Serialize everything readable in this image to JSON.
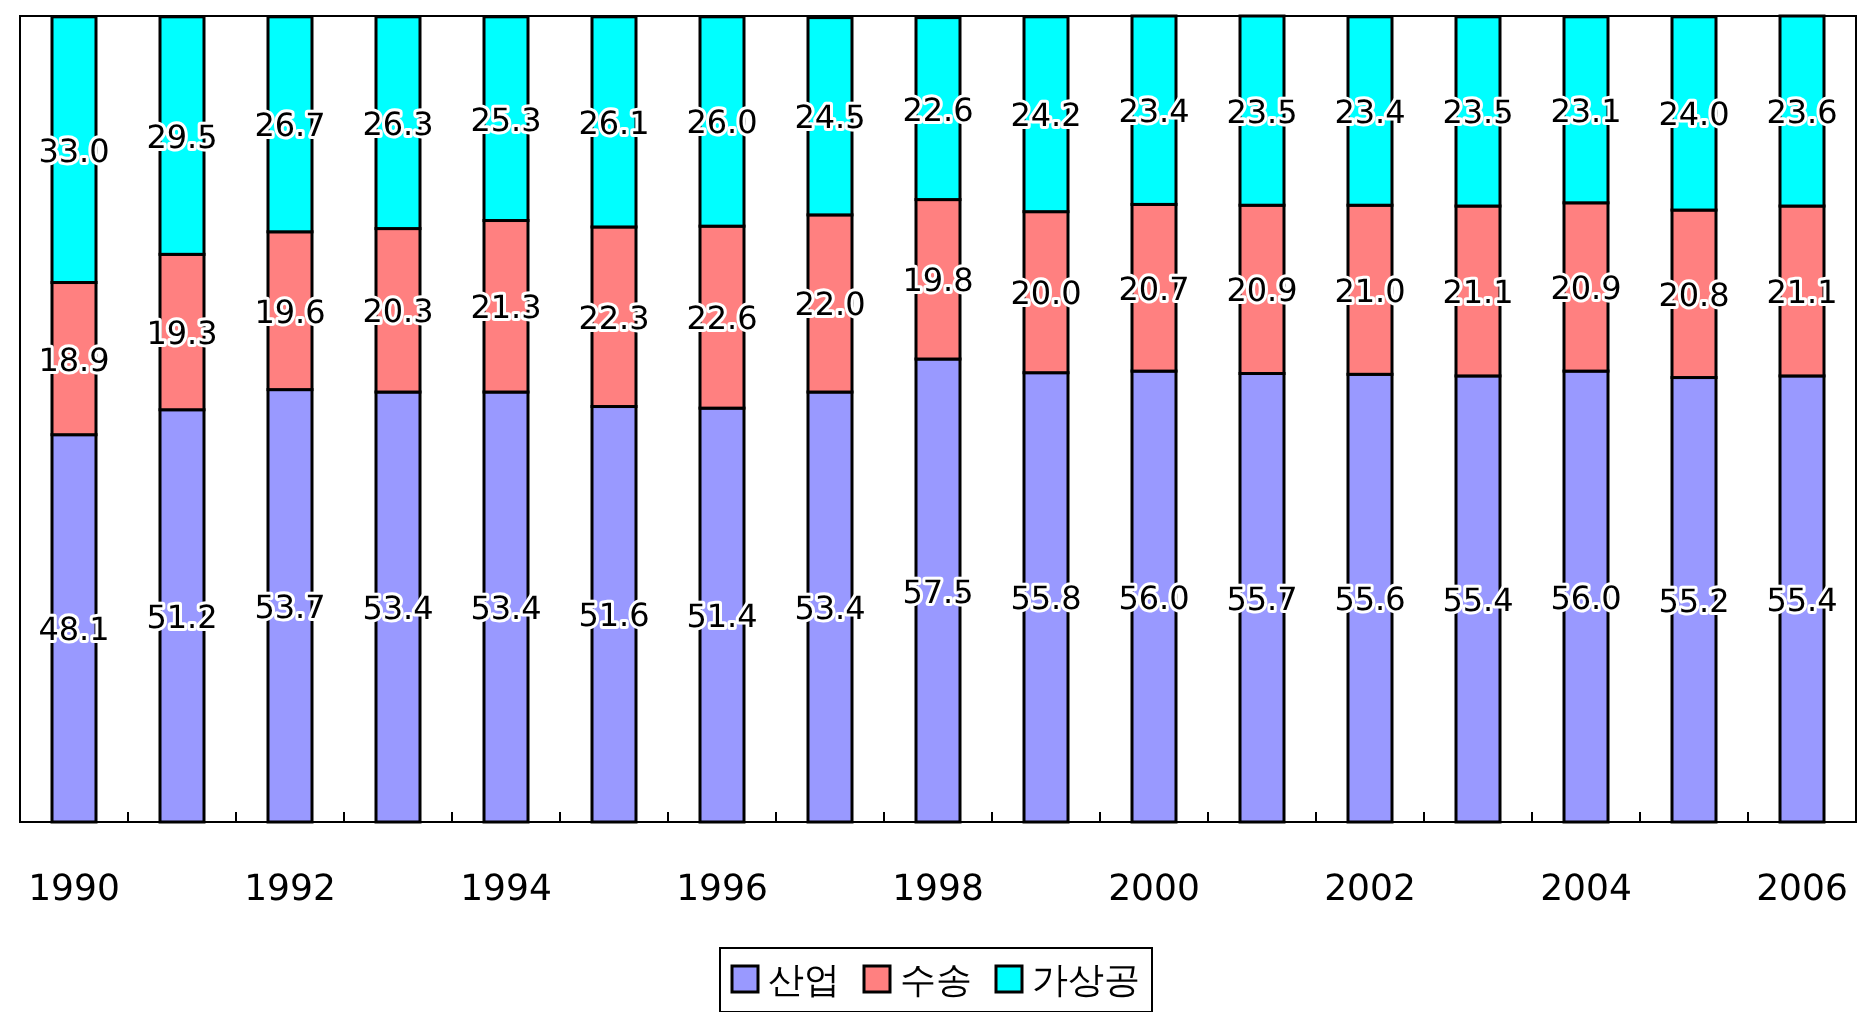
{
  "chart_data": {
    "type": "bar",
    "stacked": true,
    "legend": "bottom",
    "categories": [
      "1990",
      null,
      "1992",
      null,
      "1994",
      null,
      "1996",
      null,
      "1998",
      null,
      "2000",
      null,
      "2002",
      null,
      "2004",
      null,
      "2006"
    ],
    "series": [
      {
        "name": "산업",
        "color": "#9999ff",
        "values": [
          48.1,
          51.2,
          53.7,
          53.4,
          53.4,
          51.6,
          51.4,
          53.4,
          57.5,
          55.8,
          56.0,
          55.7,
          55.6,
          55.4,
          56.0,
          55.2,
          55.4
        ],
        "value_labels": [
          "48.1",
          "51.2",
          "53.7",
          "53.4",
          "53.4",
          "51.6",
          "51.4",
          "53.4",
          "57.5",
          "55.8",
          "56.0",
          "55.7",
          "55.6",
          "55.4",
          "56.0",
          "55.2",
          "55.4"
        ]
      },
      {
        "name": "수송",
        "color": "#ff8080",
        "values": [
          18.9,
          19.3,
          19.6,
          20.3,
          21.3,
          22.3,
          22.6,
          22.0,
          19.8,
          20.0,
          20.7,
          20.9,
          21.0,
          21.1,
          20.9,
          20.8,
          21.1
        ],
        "value_labels": [
          "18.9",
          "19.3",
          "19.6",
          "20.3",
          "21.3",
          "22.3",
          "22.6",
          "22.0",
          "19.8",
          "20.0",
          "20.7",
          "20.9",
          "21.0",
          "21.1",
          "20.9",
          "20.8",
          "21.1"
        ]
      },
      {
        "name": "가상공",
        "color": "#00ffff",
        "values": [
          33.0,
          29.5,
          26.7,
          26.3,
          25.3,
          26.1,
          26.0,
          24.5,
          22.6,
          24.2,
          23.4,
          23.5,
          23.4,
          23.5,
          23.1,
          24.0,
          23.6
        ],
        "value_labels": [
          "33.0",
          "29.5",
          "26.7",
          "26.3",
          "25.3",
          "26.1",
          "26.0",
          "24.5",
          "22.6",
          "24.2",
          "23.4",
          "23.5",
          "23.4",
          "23.5",
          "23.1",
          "24.0",
          "23.6"
        ]
      }
    ]
  }
}
